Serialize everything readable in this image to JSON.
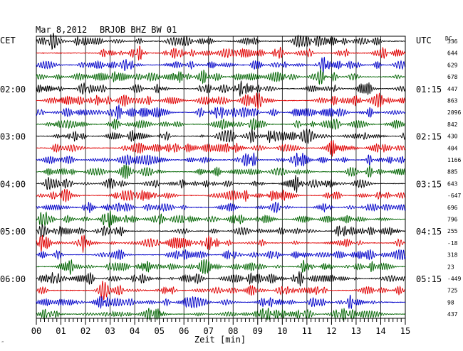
{
  "header": {
    "date": "Mar 8,2012",
    "station": "BRJOB BHZ BW 01"
  },
  "left_tz_label": "CET",
  "right_tz_label": "UTC",
  "dc_label": "DC",
  "x_axis_title": "Zeit [min]",
  "corner_mark": "‴",
  "chart_data": {
    "type": "line",
    "title": "Mar 8,2012   BRJOB BHZ BW 01",
    "xlabel": "Zeit [min]",
    "xlim": [
      0,
      15
    ],
    "x_ticks": [
      "00",
      "01",
      "02",
      "03",
      "04",
      "05",
      "06",
      "07",
      "08",
      "09",
      "10",
      "11",
      "12",
      "13",
      "14",
      "15"
    ],
    "trace_count": 24,
    "trace_colors": [
      "#000000",
      "#e00000",
      "#0000c8",
      "#006400"
    ],
    "left_hour_labels": [
      {
        "trace": 4,
        "text": "02:00"
      },
      {
        "trace": 8,
        "text": "03:00"
      },
      {
        "trace": 12,
        "text": "04:00"
      },
      {
        "trace": 16,
        "text": "05:00"
      },
      {
        "trace": 20,
        "text": "06:00"
      }
    ],
    "right_hour_labels": [
      {
        "trace": 4,
        "text": "01:15"
      },
      {
        "trace": 8,
        "text": "02:15"
      },
      {
        "trace": 12,
        "text": "03:15"
      },
      {
        "trace": 16,
        "text": "04:15"
      },
      {
        "trace": 20,
        "text": "05:15"
      }
    ],
    "dc_offsets": [
      "336",
      "644",
      "629",
      "678",
      "447",
      "863",
      "2096",
      "842",
      "430",
      "404",
      "1166",
      "885",
      "643",
      "-647",
      "696",
      "796",
      "255",
      "-18",
      "318",
      "23",
      "-449",
      "725",
      "98",
      "437"
    ],
    "grid": true
  }
}
